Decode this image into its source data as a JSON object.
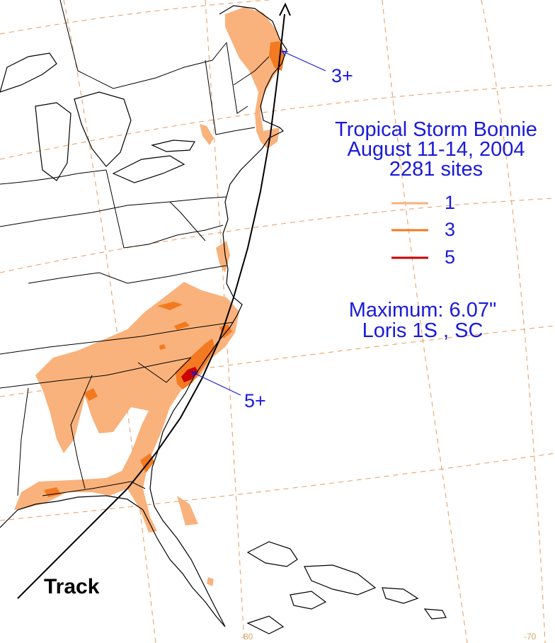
{
  "title": {
    "line1": "Tropical Storm Bonnie",
    "line2": "August 11-14, 2004",
    "line3": "2281 sites"
  },
  "legend": {
    "items": [
      {
        "label": "1",
        "color": "#f9b27c"
      },
      {
        "label": "3",
        "color": "#f37a20"
      },
      {
        "label": "5",
        "color": "#cc0000"
      }
    ]
  },
  "maximum": {
    "value_text": "Maximum: 6.07\"",
    "location_text": "Loris 1S , SC"
  },
  "callouts": {
    "north": "3+",
    "south": "5+"
  },
  "track_label": "Track",
  "longitude_labels": [
    "-80",
    "-70"
  ],
  "colors": {
    "text": "#1a1adb",
    "contour_1": "#f9b27c",
    "contour_3": "#f37a20",
    "contour_5": "#cc0000",
    "grid": "#e8a36a"
  }
}
